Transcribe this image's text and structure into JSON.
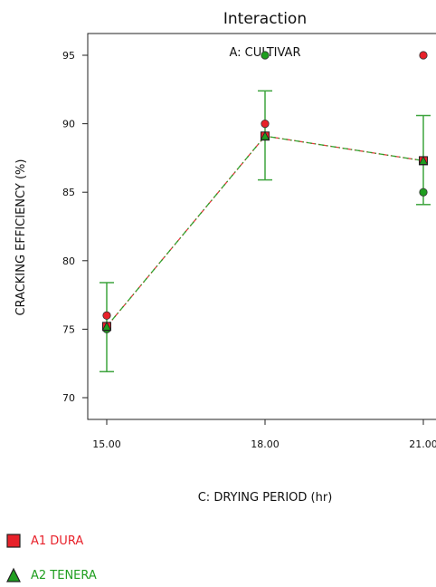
{
  "chart_data": {
    "type": "line",
    "title": "Interaction",
    "subtitle": "A: CULTIVAR",
    "xlabel": "C: DRYING PERIOD (hr)",
    "ylabel": "CRACKING EFFICIENCY (%)",
    "x": [
      15,
      18,
      21
    ],
    "xtick_labels": [
      "15.00",
      "18.00",
      "21.00"
    ],
    "ytick_labels": [
      "70",
      "75",
      "80",
      "85",
      "90",
      "95"
    ],
    "yticks": [
      70,
      75,
      80,
      85,
      90,
      95
    ],
    "xlim": [
      15,
      21
    ],
    "ylim": [
      68.3,
      96.5
    ],
    "series": [
      {
        "name": "A1 DURA",
        "color": "#e8212a",
        "marker": "square",
        "line_style": "dash-dot",
        "values": [
          75.2,
          89.1,
          87.3
        ]
      },
      {
        "name": "A2 TENERA",
        "color": "#1f9e1f",
        "marker": "triangle",
        "line_style": "dash-dot",
        "values": [
          75.2,
          89.1,
          87.3
        ]
      }
    ],
    "error_bars": [
      {
        "x": 15,
        "low": 71.9,
        "high": 78.4
      },
      {
        "x": 18,
        "low": 85.9,
        "high": 92.4
      },
      {
        "x": 21,
        "low": 84.1,
        "high": 90.6
      }
    ],
    "observations": [
      {
        "x": 15,
        "y": 76,
        "color": "#e8212a"
      },
      {
        "x": 15,
        "y": 75,
        "color": "#1f9e1f"
      },
      {
        "x": 18,
        "y": 95,
        "color": "#1f9e1f"
      },
      {
        "x": 18,
        "y": 90,
        "color": "#e8212a"
      },
      {
        "x": 21,
        "y": 95,
        "color": "#e8212a"
      },
      {
        "x": 21,
        "y": 85,
        "color": "#1f9e1f"
      }
    ],
    "grid": false,
    "legend_position": "bottom-left"
  }
}
